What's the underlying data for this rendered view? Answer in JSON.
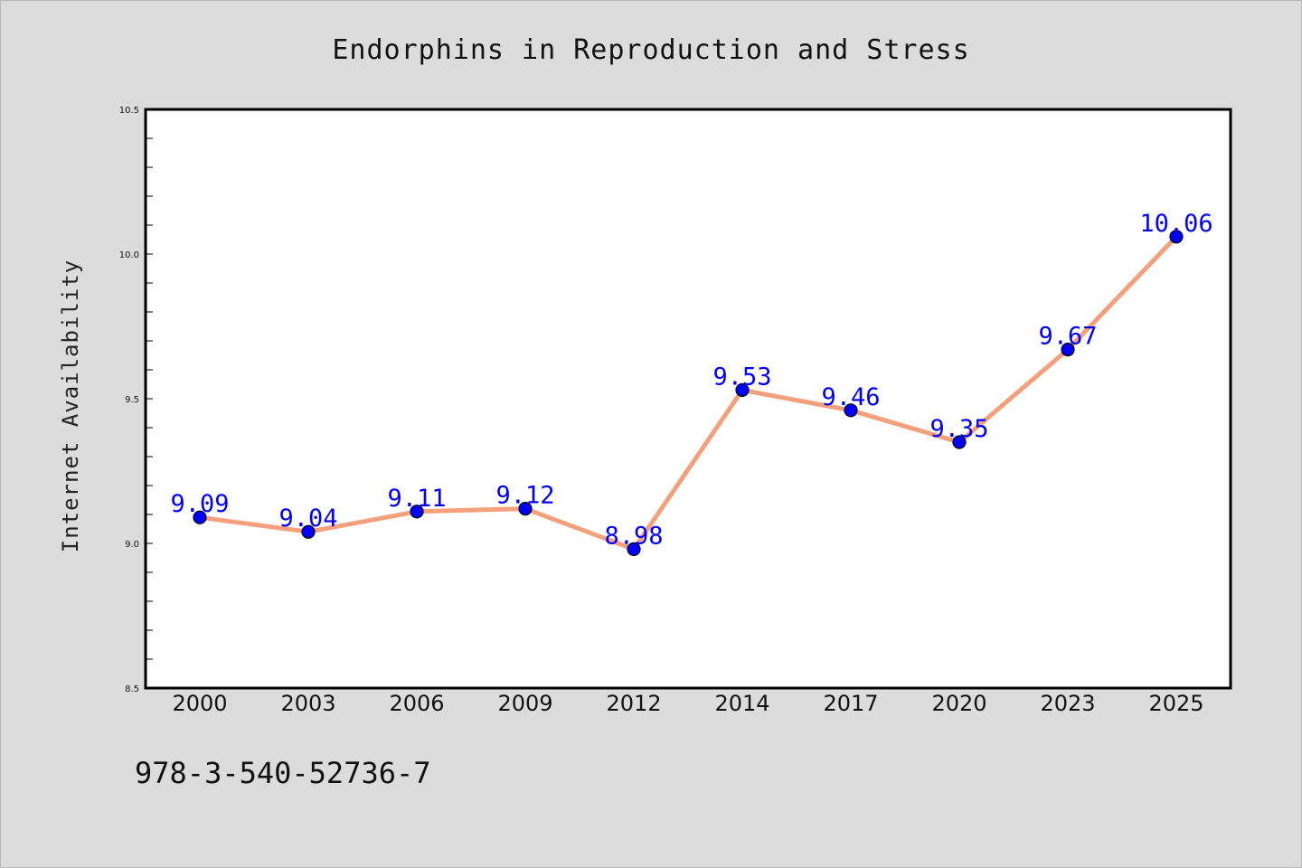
{
  "chart_data": {
    "type": "line",
    "title": "Endorphins in Reproduction and Stress",
    "xlabel": "",
    "ylabel": "Internet Availability",
    "categories": [
      "2000",
      "2003",
      "2006",
      "2009",
      "2012",
      "2014",
      "2017",
      "2020",
      "2023",
      "2025"
    ],
    "series": [
      {
        "values": [
          9.09,
          9.04,
          9.11,
          9.12,
          8.98,
          9.53,
          9.46,
          9.35,
          9.67,
          10.06
        ],
        "labels": [
          "9.09",
          "9.04",
          "9.11",
          "9.12",
          "8.98",
          "9.53",
          "9.46",
          "9.35",
          "9.67",
          "10.06"
        ],
        "line_color": "#f4a07c",
        "marker_color": "#0000ff"
      }
    ],
    "ylim": [
      8.5,
      10.5
    ],
    "yticks": [
      "8.5",
      "9.0",
      "9.5",
      "10.0",
      "10.5"
    ],
    "grid": false,
    "data_label_color": "#0000ff"
  },
  "footer": {
    "identifier": "978-3-540-52736-7"
  },
  "colors": {
    "background": "#dcdcdc",
    "plot_area": "#ffffff"
  }
}
